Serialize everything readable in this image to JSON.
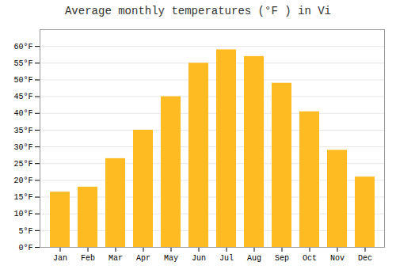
{
  "chart_data": {
    "type": "bar",
    "title": "Average monthly temperatures (°F ) in Vi",
    "categories": [
      "Jan",
      "Feb",
      "Mar",
      "Apr",
      "May",
      "Jun",
      "Jul",
      "Aug",
      "Sep",
      "Oct",
      "Nov",
      "Dec"
    ],
    "values": [
      16.5,
      18.0,
      26.5,
      35.0,
      45.0,
      55.0,
      59.0,
      57.0,
      49.0,
      40.5,
      29.0,
      21.0
    ],
    "color": "#FFBB22",
    "ylim": [
      0,
      65
    ],
    "yticks": [
      {
        "value": 0,
        "label": "0°F"
      },
      {
        "value": 5,
        "label": "5°F"
      },
      {
        "value": 10,
        "label": "10°F"
      },
      {
        "value": 15,
        "label": "15°F"
      },
      {
        "value": 20,
        "label": "20°F"
      },
      {
        "value": 25,
        "label": "25°F"
      },
      {
        "value": 30,
        "label": "30°F"
      },
      {
        "value": 35,
        "label": "35°F"
      },
      {
        "value": 40,
        "label": "40°F"
      },
      {
        "value": 45,
        "label": "45°F"
      },
      {
        "value": 50,
        "label": "50°F"
      },
      {
        "value": 55,
        "label": "55°F"
      },
      {
        "value": 60,
        "label": "60°F"
      }
    ],
    "grid": true
  }
}
